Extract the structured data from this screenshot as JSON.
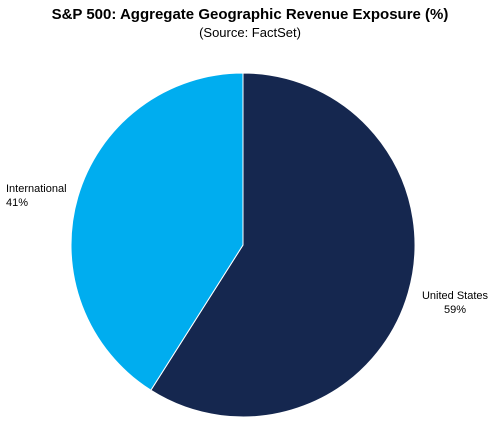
{
  "chart_data": {
    "type": "pie",
    "title": "S&P 500: Aggregate Geographic Revenue Exposure (%)",
    "subtitle": "(Source: FactSet)",
    "slices": [
      {
        "label": "United States",
        "value": 59,
        "value_label": "59%",
        "color": "#15274f"
      },
      {
        "label": "International",
        "value": 41,
        "value_label": "41%",
        "color": "#00adef"
      }
    ],
    "legend": "none"
  }
}
